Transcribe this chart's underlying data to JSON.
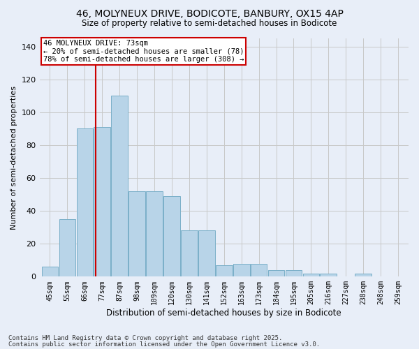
{
  "title1": "46, MOLYNEUX DRIVE, BODICOTE, BANBURY, OX15 4AP",
  "title2": "Size of property relative to semi-detached houses in Bodicote",
  "xlabel": "Distribution of semi-detached houses by size in Bodicote",
  "ylabel": "Number of semi-detached properties",
  "categories": [
    "45sqm",
    "55sqm",
    "66sqm",
    "77sqm",
    "87sqm",
    "98sqm",
    "109sqm",
    "120sqm",
    "130sqm",
    "141sqm",
    "152sqm",
    "163sqm",
    "173sqm",
    "184sqm",
    "195sqm",
    "205sqm",
    "216sqm",
    "227sqm",
    "238sqm",
    "248sqm",
    "259sqm"
  ],
  "values": [
    6,
    35,
    90,
    91,
    110,
    52,
    52,
    49,
    28,
    28,
    7,
    8,
    8,
    4,
    4,
    2,
    2,
    0,
    2,
    0,
    0
  ],
  "bar_color": "#b8d4e8",
  "bar_edge_color": "#7aafc8",
  "grid_color": "#c8c8c8",
  "bg_color": "#e8eef8",
  "vline_color": "#cc0000",
  "annotation_text": "46 MOLYNEUX DRIVE: 73sqm\n← 20% of semi-detached houses are smaller (78)\n78% of semi-detached houses are larger (308) →",
  "annotation_box_color": "#ffffff",
  "annotation_box_edge": "#cc0000",
  "ylim": [
    0,
    145
  ],
  "yticks": [
    0,
    20,
    40,
    60,
    80,
    100,
    120,
    140
  ],
  "footer1": "Contains HM Land Registry data © Crown copyright and database right 2025.",
  "footer2": "Contains public sector information licensed under the Open Government Licence v3.0."
}
